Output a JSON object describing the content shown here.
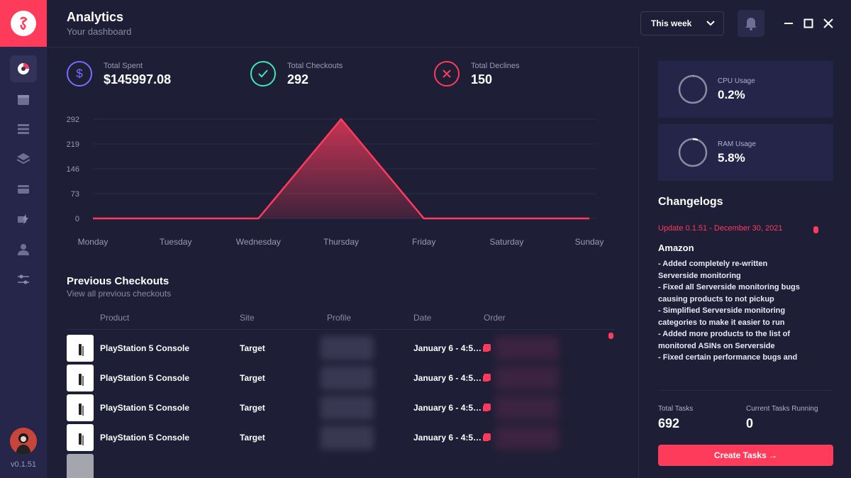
{
  "app": {
    "version": "v0.1.51"
  },
  "header": {
    "title": "Analytics",
    "subtitle": "Your dashboard",
    "range_select": "This week"
  },
  "stats": [
    {
      "label": "Total Spent",
      "value": "$145997.08",
      "color": "#7b6cff",
      "icon": "dollar-icon"
    },
    {
      "label": "Total Checkouts",
      "value": "292",
      "color": "#3ee8b5",
      "icon": "check-icon"
    },
    {
      "label": "Total Declines",
      "value": "150",
      "color": "#ff3b5c",
      "icon": "x-icon"
    }
  ],
  "chart_data": {
    "type": "area",
    "categories": [
      "Monday",
      "Tuesday",
      "Wednesday",
      "Thursday",
      "Friday",
      "Saturday",
      "Sunday"
    ],
    "values": [
      0,
      0,
      0,
      292,
      0,
      0,
      0
    ],
    "yticks": [
      0,
      73,
      146,
      219,
      292
    ],
    "ylim": [
      0,
      292
    ],
    "grid": true,
    "color": "#ff3b5c"
  },
  "checkouts": {
    "title": "Previous Checkouts",
    "subtitle": "View all previous checkouts",
    "columns": [
      "Product",
      "Site",
      "Profile",
      "Date",
      "Order"
    ],
    "rows": [
      {
        "product": "PlayStation 5 Console",
        "site": "Target",
        "date": "January 6 - 4:5…"
      },
      {
        "product": "PlayStation 5 Console",
        "site": "Target",
        "date": "January 6 - 4:5…"
      },
      {
        "product": "PlayStation 5 Console",
        "site": "Target",
        "date": "January 6 - 4:5…"
      },
      {
        "product": "PlayStation 5 Console",
        "site": "Target",
        "date": "January 6 - 4:5…"
      }
    ]
  },
  "system": {
    "cpu": {
      "label": "CPU Usage",
      "value": "0.2%",
      "fraction": 0.002
    },
    "ram": {
      "label": "RAM Usage",
      "value": "5.8%",
      "fraction": 0.058
    }
  },
  "changelogs": {
    "title": "Changelogs",
    "update": "Update 0.1.51 - December 30, 2021",
    "vendor": "Amazon",
    "items": [
      "- Added completely re-written Serverside monitoring",
      "- Fixed all Serverside monitoring bugs causing products to not pickup",
      "- Simplified Serverside monitoring categories to make it easier to run",
      "- Added more products to the list of monitored ASINs on Serverside",
      "- Fixed certain performance bugs and"
    ]
  },
  "tasks": {
    "total_label": "Total Tasks",
    "total_value": "692",
    "running_label": "Current Tasks Running",
    "running_value": "0",
    "create_label": "Create Tasks →"
  }
}
